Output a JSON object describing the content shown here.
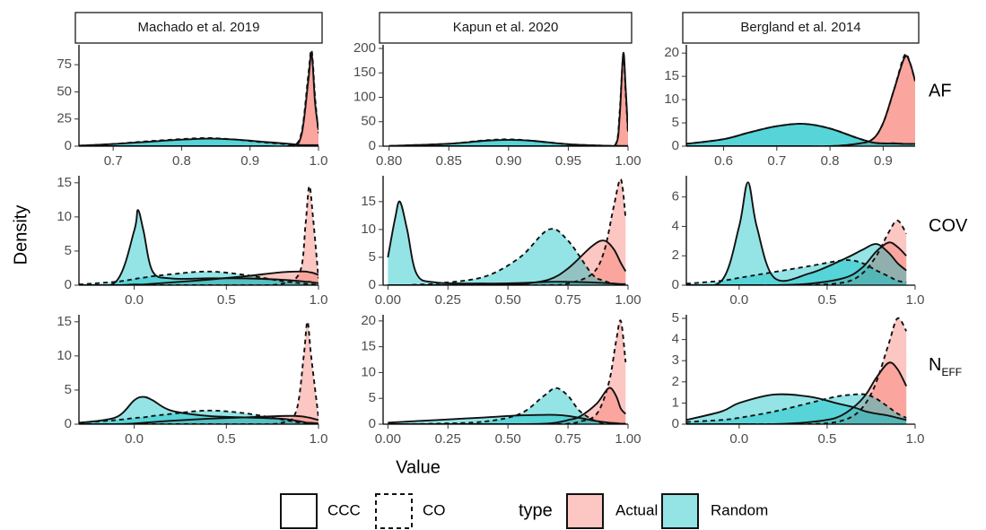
{
  "facets": {
    "columns": [
      "Machado et al. 2019",
      "Kapun et al. 2020",
      "Bergland et al. 2014"
    ],
    "rows": [
      {
        "text": "AF"
      },
      {
        "text": "COV"
      },
      {
        "text": "N",
        "subscript": "EFF"
      }
    ],
    "xlabel": "Value",
    "ylabel": "Density"
  },
  "legend": {
    "linetype": [
      {
        "name": "CCC",
        "dash": "solid"
      },
      {
        "name": "CO",
        "dash": "dashed"
      }
    ],
    "fill_title": "type",
    "fill": [
      {
        "name": "Actual",
        "color": "#f8766d"
      },
      {
        "name": "Random",
        "color": "#00bfc4"
      }
    ]
  },
  "chart_data": [
    {
      "type": "density",
      "xlim": [
        0.65,
        1.0
      ],
      "xticks": [
        0.7,
        0.8,
        0.9,
        {
          "value": 1.0,
          "label": "1.0"
        }
      ],
      "ylim": [
        0,
        90
      ],
      "yticks": [
        0,
        25,
        50,
        75
      ],
      "x": [
        0.65,
        0.7,
        0.75,
        0.8,
        0.84,
        0.88,
        0.92,
        0.96,
        0.975,
        0.985,
        0.99,
        0.995,
        1.0
      ],
      "series": [
        {
          "fill": 0,
          "linetype": 0,
          "values": [
            0,
            0,
            0,
            0,
            0,
            0,
            0,
            0.5,
            10,
            60,
            85,
            40,
            15
          ]
        },
        {
          "fill": 0,
          "linetype": 1,
          "values": [
            0,
            0,
            0,
            0,
            0,
            0,
            0,
            0.5,
            12,
            65,
            88,
            45,
            12
          ]
        },
        {
          "fill": 1,
          "linetype": 0,
          "values": [
            0.5,
            2,
            4,
            6,
            7,
            6,
            4,
            2,
            1,
            1,
            1,
            1,
            1
          ]
        },
        {
          "fill": 1,
          "linetype": 1,
          "values": [
            0.5,
            2,
            4.5,
            6.5,
            7.5,
            6,
            3.5,
            1.5,
            0.8,
            0.5,
            0.5,
            0.3,
            0.2
          ]
        }
      ]
    },
    {
      "type": "density",
      "xlim": [
        0.795,
        1.0
      ],
      "xticks": [
        {
          "value": 0.8,
          "label": "0.80"
        },
        0.85,
        {
          "value": 0.9,
          "label": "0.90"
        },
        0.95,
        {
          "value": 1.0,
          "label": "1.00"
        }
      ],
      "ylim": [
        0,
        200
      ],
      "yticks": [
        0,
        50,
        100,
        150,
        200
      ],
      "x": [
        0.8,
        0.85,
        0.88,
        0.9,
        0.92,
        0.95,
        0.98,
        0.99,
        0.993,
        0.996,
        0.998,
        1.0
      ],
      "series": [
        {
          "fill": 0,
          "linetype": 0,
          "values": [
            0,
            0,
            0,
            0,
            0,
            0,
            0.5,
            5,
            60,
            190,
            120,
            30
          ]
        },
        {
          "fill": 0,
          "linetype": 1,
          "values": [
            0,
            0,
            0,
            0,
            0,
            0,
            0.5,
            6,
            70,
            185,
            110,
            25
          ]
        },
        {
          "fill": 1,
          "linetype": 0,
          "values": [
            0.5,
            5,
            11,
            13,
            11,
            4,
            1,
            0.5,
            0.5,
            0.5,
            0.5,
            0.5
          ]
        },
        {
          "fill": 1,
          "linetype": 1,
          "values": [
            0.5,
            5,
            12,
            14,
            11,
            4,
            1,
            0.5,
            0.3,
            0.2,
            0.2,
            0.2
          ]
        }
      ]
    },
    {
      "type": "density",
      "xlim": [
        0.53,
        0.96
      ],
      "xticks": [
        0.6,
        0.7,
        0.8,
        0.9
      ],
      "ylim": [
        0,
        21
      ],
      "yticks": [
        0,
        5,
        10,
        15,
        20
      ],
      "x": [
        0.53,
        0.6,
        0.65,
        0.7,
        0.75,
        0.8,
        0.85,
        0.88,
        0.9,
        0.92,
        0.94,
        0.95,
        0.96
      ],
      "series": [
        {
          "fill": 0,
          "linetype": 0,
          "values": [
            0,
            0,
            0,
            0,
            0,
            0,
            0.5,
            1.5,
            5,
            12,
            19,
            18,
            14
          ]
        },
        {
          "fill": 0,
          "linetype": 1,
          "values": [
            0,
            0,
            0,
            0,
            0,
            0,
            0.5,
            1.5,
            5,
            12,
            19.5,
            18,
            14
          ]
        },
        {
          "fill": 1,
          "linetype": 0,
          "values": [
            0.5,
            1.5,
            3,
            4.3,
            4.8,
            3.8,
            1.8,
            0.8,
            0.6,
            0.6,
            0.5,
            0.5,
            0.5
          ]
        },
        {
          "fill": 1,
          "linetype": 1,
          "values": [
            0.5,
            1.5,
            3,
            4.3,
            4.8,
            3.8,
            1.8,
            0.8,
            0.6,
            0.6,
            0.5,
            0.5,
            0.5
          ]
        }
      ]
    },
    {
      "type": "density",
      "xlim": [
        -0.3,
        1.0
      ],
      "xticks": [
        {
          "value": 0,
          "label": "0.0"
        },
        0.5,
        {
          "value": 1.0,
          "label": "1.0"
        }
      ],
      "ylim": [
        0,
        15.5
      ],
      "yticks": [
        0,
        5,
        10,
        15
      ],
      "x": [
        -0.3,
        -0.1,
        0,
        0.02,
        0.05,
        0.1,
        0.2,
        0.4,
        0.6,
        0.8,
        0.9,
        0.93,
        0.95,
        0.97,
        1.0
      ],
      "series": [
        {
          "fill": 0,
          "linetype": 0,
          "values": [
            0,
            0,
            0.1,
            0.1,
            0.1,
            0.2,
            0.4,
            0.8,
            1.3,
            1.9,
            2,
            2,
            1.9,
            1.8,
            1.5
          ]
        },
        {
          "fill": 0,
          "linetype": 1,
          "values": [
            0,
            0,
            0,
            0,
            0,
            0,
            0,
            0,
            0,
            0.2,
            2,
            9,
            14.5,
            10,
            1
          ]
        },
        {
          "fill": 1,
          "linetype": 0,
          "values": [
            0,
            0.5,
            8,
            11,
            8,
            2,
            1,
            1,
            1,
            0.8,
            0.6,
            0.5,
            0.5,
            0.4,
            0.3
          ]
        },
        {
          "fill": 1,
          "linetype": 1,
          "values": [
            0.1,
            0.5,
            0.9,
            1,
            1.1,
            1.3,
            1.6,
            2,
            1.5,
            0.6,
            0.3,
            0.2,
            0.2,
            0.1,
            0.1
          ]
        }
      ]
    },
    {
      "type": "density",
      "xlim": [
        -0.02,
        1.0
      ],
      "xticks": [
        {
          "value": 0,
          "label": "0.00"
        },
        0.25,
        {
          "value": 0.5,
          "label": "0.50"
        },
        0.75,
        {
          "value": 1.0,
          "label": "1.00"
        }
      ],
      "ylim": [
        0,
        19
      ],
      "yticks": [
        0,
        5,
        10,
        15
      ],
      "x": [
        0,
        0.03,
        0.05,
        0.08,
        0.12,
        0.2,
        0.4,
        0.55,
        0.67,
        0.75,
        0.85,
        0.9,
        0.94,
        0.97,
        0.99
      ],
      "series": [
        {
          "fill": 0,
          "linetype": 0,
          "values": [
            0,
            0,
            0,
            0,
            0,
            0,
            0,
            0.2,
            1,
            3,
            7,
            8,
            6.5,
            4,
            2.5
          ]
        },
        {
          "fill": 0,
          "linetype": 1,
          "values": [
            0,
            0,
            0,
            0,
            0,
            0,
            0,
            0,
            0,
            0.3,
            2,
            6,
            14,
            19,
            12
          ]
        },
        {
          "fill": 1,
          "linetype": 0,
          "values": [
            5,
            12,
            15,
            10,
            2,
            0.5,
            0.3,
            0.4,
            0.6,
            0.6,
            0.5,
            0.4,
            0.3,
            0.2,
            0.2
          ]
        },
        {
          "fill": 1,
          "linetype": 1,
          "values": [
            0,
            0,
            0,
            0,
            0.1,
            0.3,
            1.5,
            5,
            10,
            8,
            2,
            0.8,
            0.3,
            0.2,
            0.1
          ]
        }
      ]
    },
    {
      "type": "density",
      "xlim": [
        -0.3,
        1.0
      ],
      "xticks": [
        {
          "value": 0,
          "label": "0.0"
        },
        0.5,
        {
          "value": 1.0,
          "label": "1.0"
        }
      ],
      "ylim": [
        0,
        7.2
      ],
      "yticks": [
        0,
        2,
        4,
        6
      ],
      "x": [
        -0.3,
        -0.1,
        0,
        0.05,
        0.1,
        0.2,
        0.4,
        0.6,
        0.7,
        0.78,
        0.85,
        0.9,
        0.95
      ],
      "series": [
        {
          "fill": 0,
          "linetype": 0,
          "values": [
            0,
            0,
            0,
            0,
            0,
            0,
            0.1,
            0.5,
            1.2,
            2.3,
            2.9,
            2.6,
            2
          ]
        },
        {
          "fill": 0,
          "linetype": 1,
          "values": [
            0,
            0,
            0,
            0,
            0,
            0,
            0,
            0.2,
            0.8,
            2,
            3.6,
            4.4,
            3.5
          ]
        },
        {
          "fill": 1,
          "linetype": 0,
          "values": [
            0,
            0.3,
            4,
            7,
            4,
            0.5,
            0.8,
            1.8,
            2.4,
            2.8,
            2.2,
            1.5,
            1
          ]
        },
        {
          "fill": 1,
          "linetype": 1,
          "values": [
            0.1,
            0.3,
            0.5,
            0.6,
            0.7,
            0.9,
            1.3,
            1.7,
            1.5,
            1,
            0.6,
            0.3,
            0.2
          ]
        }
      ]
    },
    {
      "type": "density",
      "xlim": [
        -0.3,
        1.0
      ],
      "xticks": [
        {
          "value": 0,
          "label": "0.0"
        },
        0.5,
        {
          "value": 1.0,
          "label": "1.0"
        }
      ],
      "ylim": [
        0,
        15.5
      ],
      "yticks": [
        0,
        5,
        10,
        15
      ],
      "x": [
        -0.3,
        -0.1,
        0,
        0.05,
        0.1,
        0.2,
        0.4,
        0.6,
        0.8,
        0.88,
        0.92,
        0.94,
        0.96,
        1.0
      ],
      "series": [
        {
          "fill": 0,
          "linetype": 0,
          "values": [
            0,
            0,
            0.1,
            0.2,
            0.3,
            0.5,
            0.8,
            1,
            1.2,
            1.2,
            1.1,
            1,
            0.9,
            0.6
          ]
        },
        {
          "fill": 0,
          "linetype": 1,
          "values": [
            0,
            0,
            0,
            0,
            0,
            0,
            0,
            0,
            0.2,
            2,
            10,
            15,
            10,
            1
          ]
        },
        {
          "fill": 1,
          "linetype": 0,
          "values": [
            0.2,
            1,
            3.5,
            4,
            3.5,
            2,
            1.2,
            1,
            0.8,
            0.5,
            0.3,
            0.2,
            0.2,
            0.1
          ]
        },
        {
          "fill": 1,
          "linetype": 1,
          "values": [
            0.2,
            0.6,
            0.9,
            1,
            1.2,
            1.5,
            2,
            1.6,
            0.7,
            0.3,
            0.2,
            0.1,
            0.1,
            0.1
          ]
        }
      ]
    },
    {
      "type": "density",
      "xlim": [
        -0.02,
        1.0
      ],
      "xticks": [
        {
          "value": 0,
          "label": "0.00"
        },
        0.25,
        {
          "value": 0.5,
          "label": "0.50"
        },
        0.75,
        {
          "value": 1.0,
          "label": "1.00"
        }
      ],
      "ylim": [
        0,
        20.5
      ],
      "yticks": [
        0,
        5,
        10,
        15,
        20
      ],
      "x": [
        0,
        0.2,
        0.4,
        0.55,
        0.65,
        0.7,
        0.75,
        0.8,
        0.87,
        0.92,
        0.95,
        0.97,
        0.99
      ],
      "series": [
        {
          "fill": 0,
          "linetype": 0,
          "values": [
            0,
            0,
            0,
            0,
            0.1,
            0.3,
            0.8,
            1.5,
            4,
            7,
            5.5,
            3,
            2
          ]
        },
        {
          "fill": 0,
          "linetype": 1,
          "values": [
            0,
            0,
            0,
            0,
            0,
            0,
            0.1,
            0.5,
            2,
            8,
            16,
            20,
            12
          ]
        },
        {
          "fill": 1,
          "linetype": 0,
          "values": [
            0.3,
            0.8,
            1.3,
            1.7,
            1.8,
            1.8,
            1.6,
            1.2,
            0.6,
            0.3,
            0.2,
            0.1,
            0.1
          ]
        },
        {
          "fill": 1,
          "linetype": 1,
          "values": [
            0,
            0.1,
            0.5,
            2,
            5.5,
            7,
            5.5,
            2.5,
            0.5,
            0.2,
            0.1,
            0.1,
            0.1
          ]
        }
      ]
    },
    {
      "type": "density",
      "xlim": [
        -0.3,
        1.0
      ],
      "xticks": [
        {
          "value": 0,
          "label": "0.0"
        },
        0.5,
        {
          "value": 1.0,
          "label": "1.0"
        }
      ],
      "ylim": [
        0,
        5
      ],
      "yticks": [
        0,
        1,
        2,
        3,
        4,
        5
      ],
      "x": [
        -0.3,
        -0.1,
        0,
        0.2,
        0.4,
        0.55,
        0.65,
        0.72,
        0.78,
        0.85,
        0.9,
        0.95
      ],
      "series": [
        {
          "fill": 0,
          "linetype": 0,
          "values": [
            0,
            0,
            0,
            0,
            0.1,
            0.3,
            0.8,
            1.4,
            2.2,
            2.9,
            2.6,
            1.8
          ]
        },
        {
          "fill": 0,
          "linetype": 1,
          "values": [
            0,
            0,
            0,
            0,
            0,
            0.1,
            0.4,
            1,
            2,
            3.8,
            5,
            4.4
          ]
        },
        {
          "fill": 1,
          "linetype": 0,
          "values": [
            0.2,
            0.6,
            1,
            1.4,
            1.3,
            1,
            0.8,
            0.6,
            0.5,
            0.4,
            0.3,
            0.2
          ]
        },
        {
          "fill": 1,
          "linetype": 1,
          "values": [
            0.1,
            0.2,
            0.3,
            0.6,
            1,
            1.3,
            1.4,
            1.4,
            1.2,
            0.8,
            0.5,
            0.3
          ]
        }
      ]
    }
  ]
}
